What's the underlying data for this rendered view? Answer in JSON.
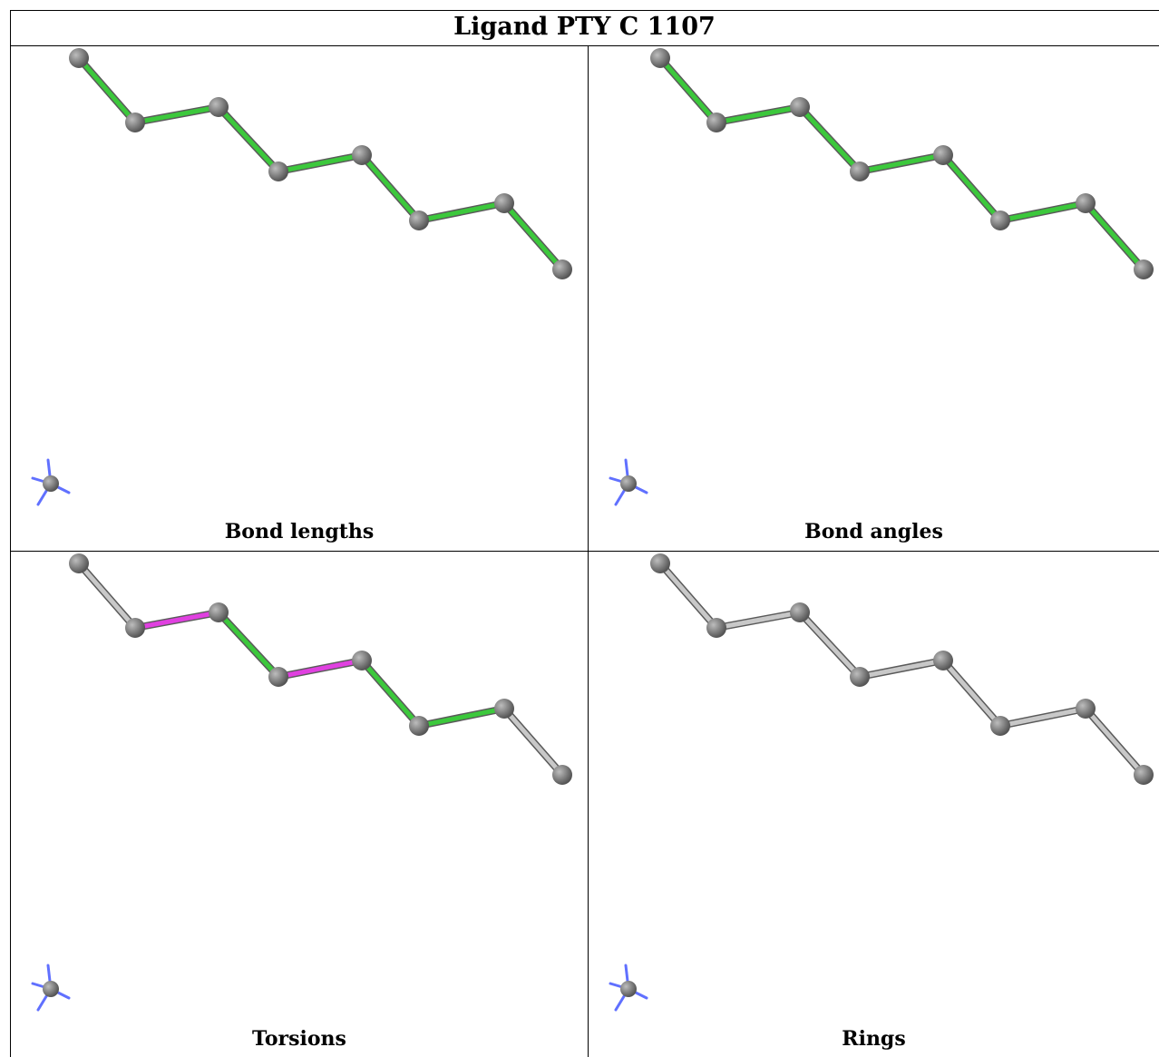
{
  "title": "Ligand PTY C 1107",
  "colors": {
    "green": "#3cc83c",
    "magenta": "#e040e0",
    "gray_bond": "#c8c8c8",
    "atom": "#7a7a7a",
    "axis_blue": "#6070ff"
  },
  "panels": [
    {
      "caption": "Bond lengths",
      "bond_colors": [
        "green",
        "green",
        "green",
        "green",
        "green",
        "green",
        "green",
        "green",
        "green"
      ]
    },
    {
      "caption": "Bond angles",
      "bond_colors": [
        "green",
        "green",
        "green",
        "green",
        "green",
        "green",
        "green",
        "green",
        "green"
      ]
    },
    {
      "caption": "Torsions",
      "bond_colors": [
        "gray",
        "magenta",
        "green",
        "magenta",
        "green",
        "green",
        "gray"
      ]
    },
    {
      "caption": "Rings",
      "bond_colors": [
        "gray",
        "gray",
        "gray",
        "gray",
        "gray",
        "gray",
        "gray"
      ]
    }
  ]
}
